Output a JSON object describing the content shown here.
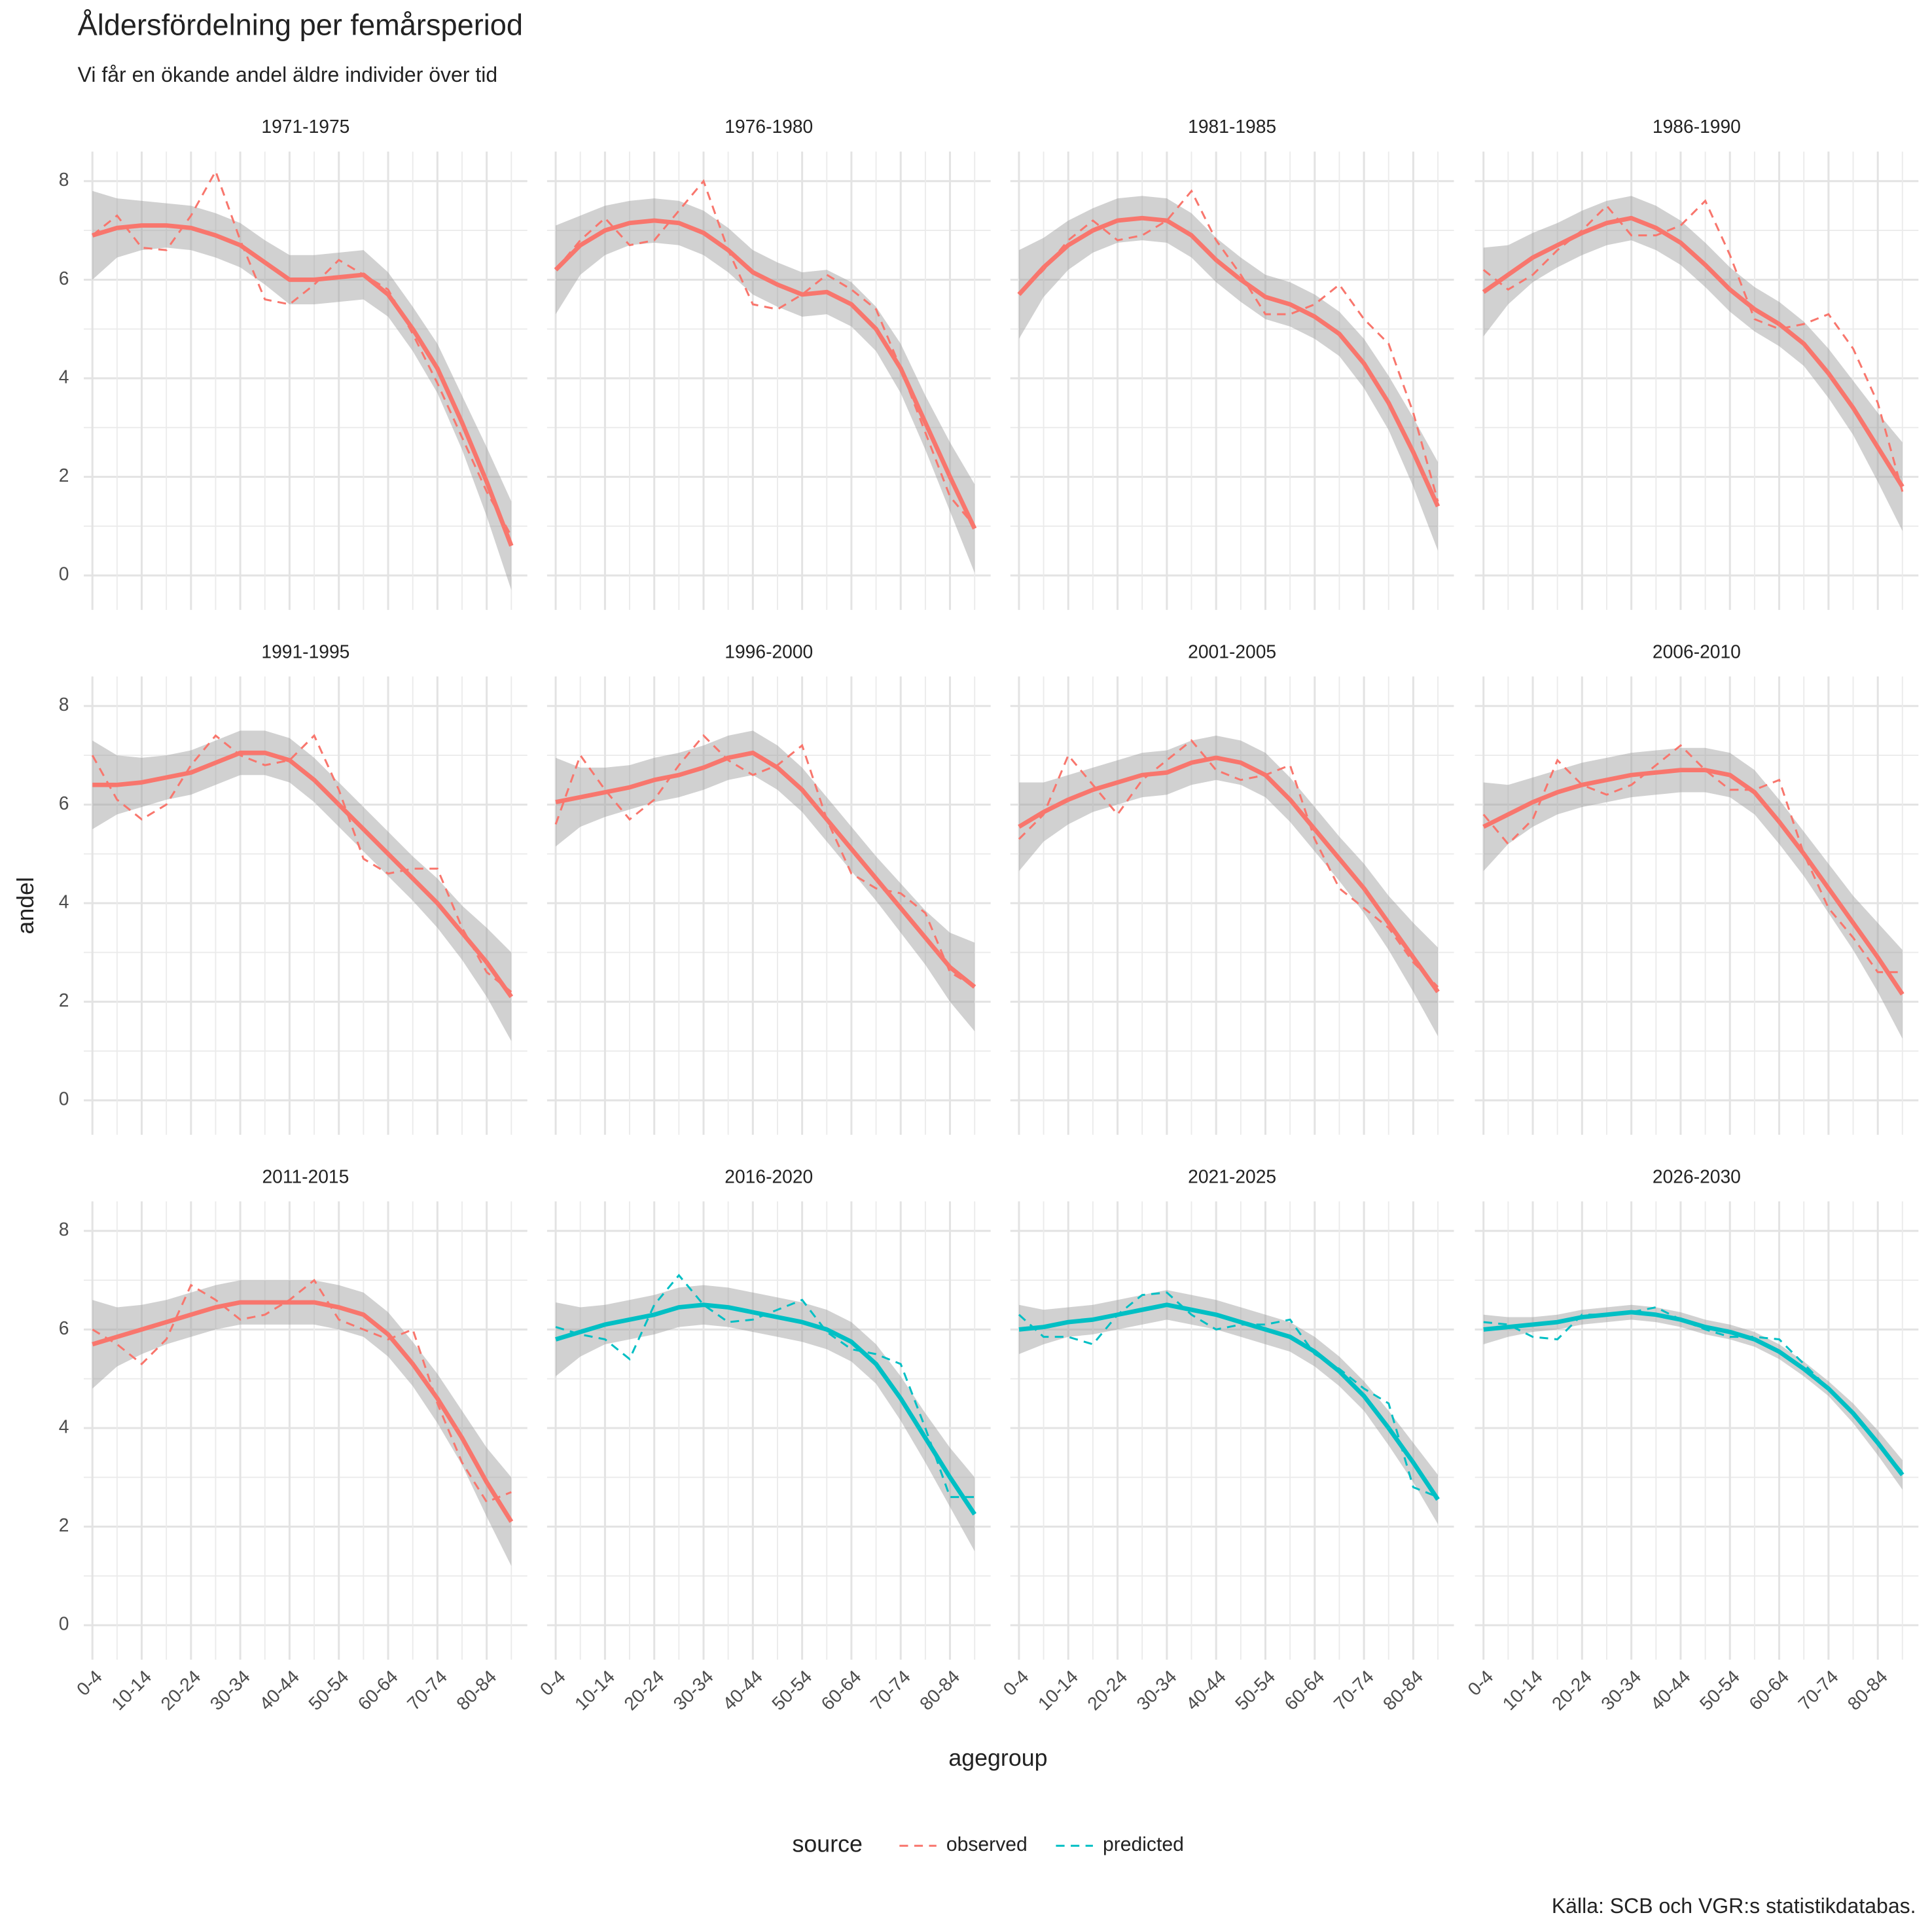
{
  "chart_data": {
    "type": "line",
    "title": "Åldersfördelning per femårsperiod",
    "subtitle": "Vi får en ökande andel äldre individer över tid",
    "x_label": "agegroup",
    "y_label": "andel",
    "caption": "Källa: SCB och VGR:s statistikdatabas.",
    "legend_title": "source",
    "legend": [
      {
        "name": "observed",
        "color": "#F8766D"
      },
      {
        "name": "predicted",
        "color": "#00BFC4"
      }
    ],
    "categories": [
      "0-4",
      null,
      "10-14",
      null,
      "20-24",
      null,
      "30-34",
      null,
      "40-44",
      null,
      "50-54",
      null,
      "60-64",
      null,
      "70-74",
      null,
      "80-84",
      null
    ],
    "ylim": [
      -0.7,
      8.6
    ],
    "yticks": [
      0,
      2,
      4,
      6,
      8
    ],
    "grid": true,
    "facets": [
      {
        "title": "1971-1975",
        "source": "observed",
        "values": [
          6.9,
          7.3,
          6.65,
          6.6,
          7.3,
          8.2,
          6.8,
          5.6,
          5.5,
          5.9,
          6.4,
          6.1,
          5.8,
          4.9,
          3.9,
          2.8,
          1.7,
          0.8
        ],
        "smooth": [
          6.9,
          7.05,
          7.1,
          7.1,
          7.05,
          6.9,
          6.7,
          6.35,
          6.0,
          6.0,
          6.05,
          6.1,
          5.7,
          5.0,
          4.2,
          3.1,
          1.9,
          0.6
        ],
        "se": [
          0.9,
          0.6,
          0.5,
          0.45,
          0.45,
          0.45,
          0.45,
          0.45,
          0.5,
          0.5,
          0.5,
          0.5,
          0.45,
          0.45,
          0.5,
          0.55,
          0.7,
          0.9
        ]
      },
      {
        "title": "1976-1980",
        "source": "observed",
        "values": [
          6.2,
          6.8,
          7.25,
          6.7,
          6.8,
          7.4,
          8.0,
          6.6,
          5.5,
          5.4,
          5.7,
          6.1,
          5.8,
          5.4,
          4.2,
          2.9,
          1.6,
          1.0
        ],
        "smooth": [
          6.2,
          6.7,
          7.0,
          7.15,
          7.2,
          7.15,
          6.95,
          6.6,
          6.15,
          5.9,
          5.7,
          5.75,
          5.5,
          5.0,
          4.2,
          3.1,
          2.0,
          0.95
        ],
        "se": [
          0.9,
          0.6,
          0.5,
          0.45,
          0.45,
          0.45,
          0.45,
          0.45,
          0.45,
          0.45,
          0.45,
          0.45,
          0.45,
          0.45,
          0.5,
          0.55,
          0.7,
          0.9
        ]
      },
      {
        "title": "1981-1985",
        "source": "observed",
        "values": [
          5.7,
          6.2,
          6.8,
          7.2,
          6.8,
          6.9,
          7.2,
          7.8,
          6.8,
          6.1,
          5.3,
          5.3,
          5.5,
          5.9,
          5.2,
          4.7,
          3.3,
          1.5
        ],
        "smooth": [
          5.7,
          6.25,
          6.7,
          7.0,
          7.2,
          7.25,
          7.2,
          6.9,
          6.4,
          6.0,
          5.65,
          5.5,
          5.25,
          4.9,
          4.3,
          3.5,
          2.5,
          1.4
        ],
        "se": [
          0.9,
          0.6,
          0.5,
          0.45,
          0.45,
          0.45,
          0.45,
          0.45,
          0.45,
          0.45,
          0.45,
          0.45,
          0.45,
          0.45,
          0.5,
          0.55,
          0.7,
          0.9
        ]
      },
      {
        "title": "1986-1990",
        "source": "observed",
        "values": [
          6.2,
          5.8,
          6.1,
          6.6,
          7.0,
          7.5,
          6.9,
          6.9,
          7.1,
          7.6,
          6.5,
          5.2,
          5.0,
          5.1,
          5.3,
          4.6,
          3.5,
          1.7
        ],
        "smooth": [
          5.75,
          6.1,
          6.45,
          6.7,
          6.95,
          7.15,
          7.25,
          7.05,
          6.75,
          6.3,
          5.8,
          5.4,
          5.1,
          4.7,
          4.1,
          3.4,
          2.6,
          1.8
        ],
        "se": [
          0.9,
          0.6,
          0.5,
          0.45,
          0.45,
          0.45,
          0.45,
          0.45,
          0.45,
          0.45,
          0.45,
          0.45,
          0.45,
          0.45,
          0.5,
          0.55,
          0.7,
          0.9
        ]
      },
      {
        "title": "1991-1995",
        "source": "observed",
        "values": [
          7.0,
          6.1,
          5.7,
          6.0,
          6.8,
          7.4,
          7.0,
          6.8,
          6.9,
          7.4,
          6.3,
          4.9,
          4.6,
          4.7,
          4.7,
          3.5,
          2.6,
          2.2
        ],
        "smooth": [
          6.4,
          6.4,
          6.45,
          6.55,
          6.65,
          6.85,
          7.05,
          7.05,
          6.9,
          6.5,
          6.0,
          5.5,
          5.0,
          4.5,
          4.0,
          3.4,
          2.8,
          2.1
        ],
        "se": [
          0.9,
          0.6,
          0.5,
          0.45,
          0.45,
          0.45,
          0.45,
          0.45,
          0.45,
          0.45,
          0.45,
          0.45,
          0.45,
          0.45,
          0.5,
          0.55,
          0.7,
          0.9
        ]
      },
      {
        "title": "1996-2000",
        "source": "observed",
        "values": [
          5.6,
          7.0,
          6.3,
          5.7,
          6.1,
          6.8,
          7.4,
          6.9,
          6.6,
          6.8,
          7.2,
          5.7,
          4.6,
          4.3,
          4.2,
          3.8,
          2.6,
          2.3
        ],
        "smooth": [
          6.05,
          6.15,
          6.25,
          6.35,
          6.5,
          6.6,
          6.75,
          6.95,
          7.05,
          6.75,
          6.3,
          5.7,
          5.1,
          4.5,
          3.9,
          3.3,
          2.7,
          2.3
        ],
        "se": [
          0.9,
          0.6,
          0.5,
          0.45,
          0.45,
          0.45,
          0.45,
          0.45,
          0.45,
          0.45,
          0.45,
          0.45,
          0.45,
          0.45,
          0.5,
          0.55,
          0.7,
          0.9
        ]
      },
      {
        "title": "2001-2005",
        "source": "observed",
        "values": [
          5.3,
          5.8,
          7.0,
          6.4,
          5.8,
          6.5,
          6.9,
          7.3,
          6.7,
          6.5,
          6.6,
          6.8,
          5.3,
          4.3,
          3.9,
          3.5,
          2.8,
          2.3
        ],
        "smooth": [
          5.55,
          5.85,
          6.1,
          6.3,
          6.45,
          6.6,
          6.65,
          6.85,
          6.95,
          6.85,
          6.6,
          6.1,
          5.5,
          4.9,
          4.3,
          3.6,
          2.9,
          2.2
        ],
        "se": [
          0.9,
          0.6,
          0.5,
          0.45,
          0.45,
          0.45,
          0.45,
          0.45,
          0.45,
          0.45,
          0.45,
          0.45,
          0.45,
          0.45,
          0.5,
          0.55,
          0.7,
          0.9
        ]
      },
      {
        "title": "2006-2010",
        "source": "observed",
        "values": [
          5.8,
          5.2,
          5.7,
          6.9,
          6.4,
          6.2,
          6.4,
          6.8,
          7.2,
          6.7,
          6.3,
          6.3,
          6.5,
          5.0,
          3.9,
          3.3,
          2.6,
          2.6
        ],
        "smooth": [
          5.55,
          5.8,
          6.05,
          6.25,
          6.4,
          6.5,
          6.6,
          6.65,
          6.7,
          6.7,
          6.6,
          6.25,
          5.65,
          5.0,
          4.3,
          3.6,
          2.9,
          2.15
        ],
        "se": [
          0.9,
          0.6,
          0.5,
          0.45,
          0.45,
          0.45,
          0.45,
          0.45,
          0.45,
          0.45,
          0.45,
          0.45,
          0.45,
          0.45,
          0.5,
          0.55,
          0.7,
          0.9
        ]
      },
      {
        "title": "2011-2015",
        "source": "observed",
        "values": [
          6.0,
          5.7,
          5.3,
          5.8,
          6.9,
          6.6,
          6.2,
          6.3,
          6.6,
          7.0,
          6.2,
          6.0,
          5.8,
          6.0,
          4.5,
          3.3,
          2.5,
          2.7
        ],
        "smooth": [
          5.7,
          5.85,
          6.0,
          6.15,
          6.3,
          6.45,
          6.55,
          6.55,
          6.55,
          6.55,
          6.45,
          6.3,
          5.9,
          5.3,
          4.6,
          3.8,
          2.9,
          2.1
        ],
        "se": [
          0.9,
          0.6,
          0.5,
          0.45,
          0.45,
          0.45,
          0.45,
          0.45,
          0.45,
          0.45,
          0.45,
          0.45,
          0.45,
          0.45,
          0.5,
          0.55,
          0.7,
          0.9
        ]
      },
      {
        "title": "2016-2020",
        "source": "predicted",
        "values": [
          6.05,
          5.9,
          5.8,
          5.4,
          6.5,
          7.1,
          6.5,
          6.15,
          6.2,
          6.4,
          6.6,
          5.95,
          5.6,
          5.5,
          5.3,
          4.0,
          2.6,
          2.6
        ],
        "smooth": [
          5.8,
          5.95,
          6.1,
          6.2,
          6.3,
          6.45,
          6.5,
          6.45,
          6.35,
          6.25,
          6.15,
          6.0,
          5.75,
          5.3,
          4.6,
          3.8,
          3.0,
          2.25
        ],
        "se": [
          0.75,
          0.5,
          0.4,
          0.4,
          0.4,
          0.4,
          0.4,
          0.4,
          0.4,
          0.4,
          0.4,
          0.4,
          0.4,
          0.4,
          0.45,
          0.5,
          0.6,
          0.75
        ]
      },
      {
        "title": "2021-2025",
        "source": "predicted",
        "values": [
          6.3,
          5.85,
          5.85,
          5.7,
          6.3,
          6.7,
          6.75,
          6.3,
          6.0,
          6.1,
          6.1,
          6.2,
          5.5,
          5.2,
          4.8,
          4.5,
          2.8,
          2.6
        ],
        "smooth": [
          6.0,
          6.05,
          6.15,
          6.2,
          6.3,
          6.4,
          6.5,
          6.4,
          6.3,
          6.15,
          6.0,
          5.85,
          5.55,
          5.15,
          4.65,
          4.0,
          3.3,
          2.55
        ],
        "se": [
          0.5,
          0.35,
          0.3,
          0.3,
          0.3,
          0.3,
          0.3,
          0.3,
          0.3,
          0.3,
          0.3,
          0.3,
          0.3,
          0.3,
          0.3,
          0.35,
          0.4,
          0.5
        ]
      },
      {
        "title": "2026-2030",
        "source": "predicted",
        "values": [
          6.15,
          6.1,
          5.85,
          5.8,
          6.3,
          6.3,
          6.35,
          6.45,
          6.2,
          6.0,
          5.85,
          5.85,
          5.8,
          5.3,
          4.8,
          4.3,
          3.7,
          3.1
        ],
        "smooth": [
          6.0,
          6.05,
          6.1,
          6.15,
          6.25,
          6.3,
          6.35,
          6.3,
          6.2,
          6.05,
          5.95,
          5.8,
          5.55,
          5.2,
          4.8,
          4.3,
          3.7,
          3.05
        ],
        "se": [
          0.3,
          0.2,
          0.15,
          0.15,
          0.15,
          0.15,
          0.15,
          0.15,
          0.15,
          0.15,
          0.15,
          0.15,
          0.15,
          0.15,
          0.15,
          0.2,
          0.25,
          0.3
        ]
      }
    ]
  }
}
